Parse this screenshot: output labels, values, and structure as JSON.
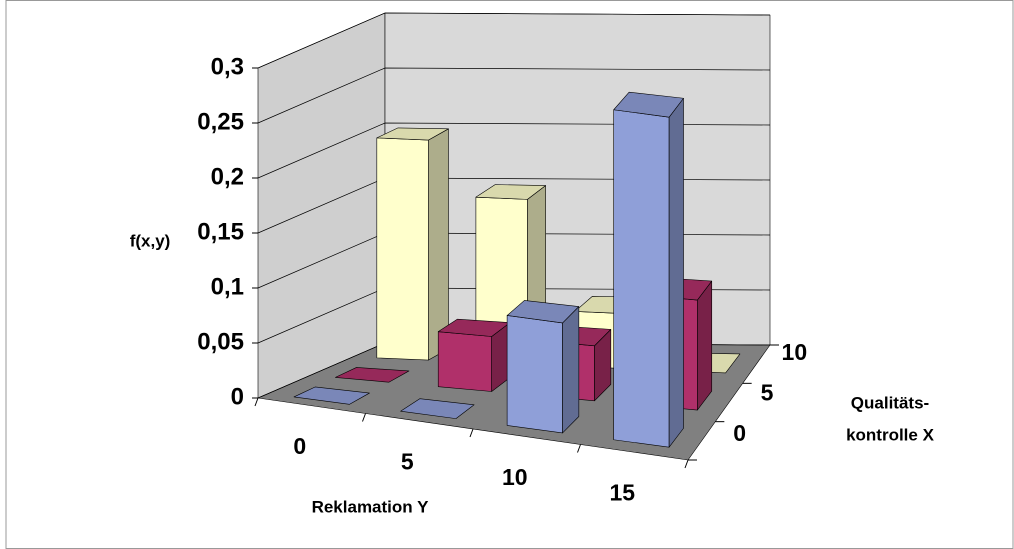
{
  "chart_data": {
    "type": "bar3d",
    "y_label": "f(x,y)",
    "x_label": "Reklamation Y",
    "z_label_lines": [
      "Qualitäts-",
      "kontrolle X"
    ],
    "categories": [
      "0",
      "5",
      "10",
      "15"
    ],
    "series": [
      {
        "name": "0",
        "color": "#8f9fd8",
        "values": [
          0,
          0,
          0.1,
          0.3
        ]
      },
      {
        "name": "5",
        "color": "#b0306a",
        "values": [
          0,
          0.05,
          0.05,
          0.1
        ]
      },
      {
        "name": "10",
        "color": "#ffffcc",
        "values": [
          0.2,
          0.15,
          0.05,
          0
        ]
      }
    ],
    "ylim": [
      0,
      0.3
    ],
    "yticks": [
      {
        "value": 0,
        "label": "0"
      },
      {
        "value": 0.05,
        "label": "0,05"
      },
      {
        "value": 0.1,
        "label": "0,1"
      },
      {
        "value": 0.15,
        "label": "0,15"
      },
      {
        "value": 0.2,
        "label": "0,2"
      },
      {
        "value": 0.25,
        "label": "0,25"
      },
      {
        "value": 0.3,
        "label": "0,3"
      }
    ],
    "grid": true
  }
}
